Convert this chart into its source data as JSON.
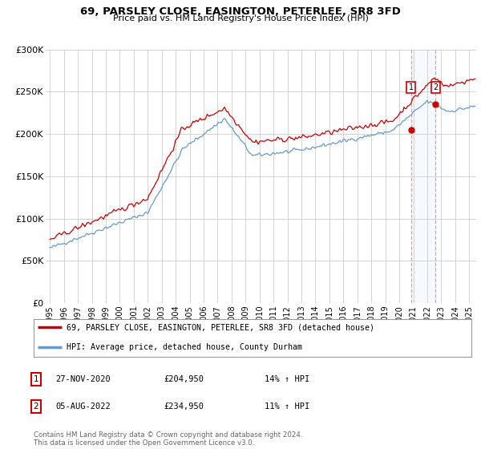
{
  "title": "69, PARSLEY CLOSE, EASINGTON, PETERLEE, SR8 3FD",
  "subtitle": "Price paid vs. HM Land Registry's House Price Index (HPI)",
  "ylim": [
    0,
    300000
  ],
  "yticks": [
    0,
    50000,
    100000,
    150000,
    200000,
    250000,
    300000
  ],
  "ytick_labels": [
    "£0",
    "£50K",
    "£100K",
    "£150K",
    "£200K",
    "£250K",
    "£300K"
  ],
  "xlabel_years": [
    "1995",
    "1996",
    "1997",
    "1998",
    "1999",
    "2000",
    "2001",
    "2002",
    "2003",
    "2004",
    "2005",
    "2006",
    "2007",
    "2008",
    "2009",
    "2010",
    "2011",
    "2012",
    "2013",
    "2014",
    "2015",
    "2016",
    "2017",
    "2018",
    "2019",
    "2020",
    "2021",
    "2022",
    "2023",
    "2024",
    "2025"
  ],
  "legend1_label": "69, PARSLEY CLOSE, EASINGTON, PETERLEE, SR8 3FD (detached house)",
  "legend2_label": "HPI: Average price, detached house, County Durham",
  "annotation1_date": "27-NOV-2020",
  "annotation1_price": "£204,950",
  "annotation1_hpi": "14% ↑ HPI",
  "annotation2_date": "05-AUG-2022",
  "annotation2_price": "£234,950",
  "annotation2_hpi": "11% ↑ HPI",
  "footer": "Contains HM Land Registry data © Crown copyright and database right 2024.\nThis data is licensed under the Open Government Licence v3.0.",
  "line1_color": "#cc0000",
  "line2_color": "#6699cc",
  "vline_color": "#ee9999",
  "span_color": "#ddeeff",
  "annotation_box_color": "#cc0000",
  "bg_color": "#ffffff",
  "grid_color": "#cccccc"
}
